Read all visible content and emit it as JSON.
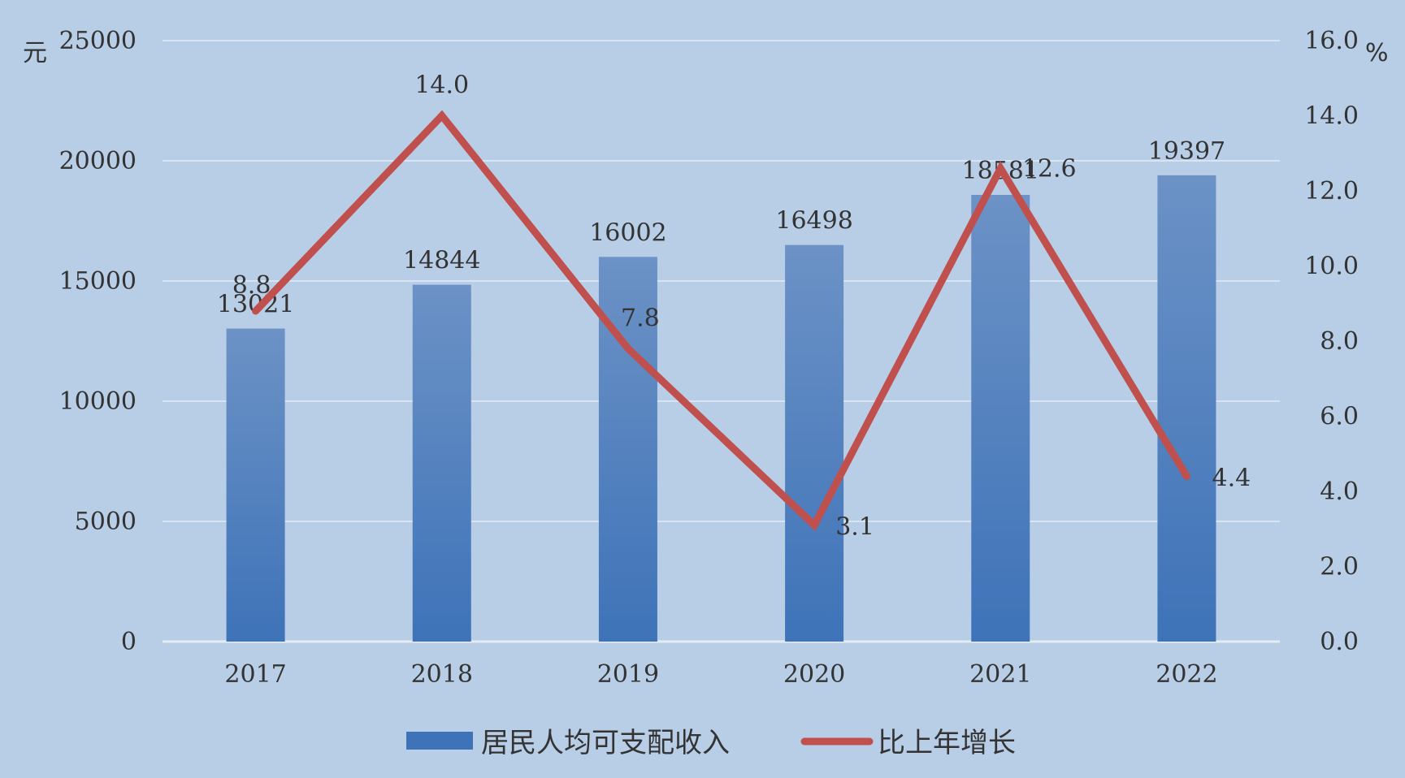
{
  "colors": {
    "background": "#b8cde6",
    "bar": "#3e73b8",
    "bar_top": "#6c92c6",
    "line": "#c0504d",
    "grid": "#e3ebf5"
  },
  "chart_data": {
    "type": "bar",
    "categories": [
      "2017",
      "2018",
      "2019",
      "2020",
      "2021",
      "2022"
    ],
    "series": [
      {
        "name": "居民人均可支配收入",
        "type": "bar",
        "axis": "left",
        "values": [
          13021,
          14844,
          16002,
          16498,
          18581,
          19397
        ],
        "labels": [
          "13021",
          "14844",
          "16002",
          "16498",
          "18581",
          "19397"
        ]
      },
      {
        "name": "比上年增长",
        "type": "line",
        "axis": "right",
        "values": [
          8.8,
          14.0,
          7.8,
          3.1,
          12.6,
          4.4
        ],
        "labels": [
          "8.8",
          "14.0",
          "7.8",
          "3.1",
          "12.6",
          "4.4"
        ]
      }
    ],
    "y_left": {
      "unit": "元",
      "ylim": [
        0,
        25000
      ],
      "ticks": [
        "0",
        "5000",
        "10000",
        "15000",
        "20000",
        "25000"
      ]
    },
    "y_right": {
      "unit": "%",
      "ylim": [
        0,
        16
      ],
      "ticks": [
        "0.0",
        "2.0",
        "4.0",
        "6.0",
        "8.0",
        "10.0",
        "12.0",
        "14.0",
        "16.0"
      ]
    },
    "grid": true,
    "legend_position": "bottom"
  }
}
